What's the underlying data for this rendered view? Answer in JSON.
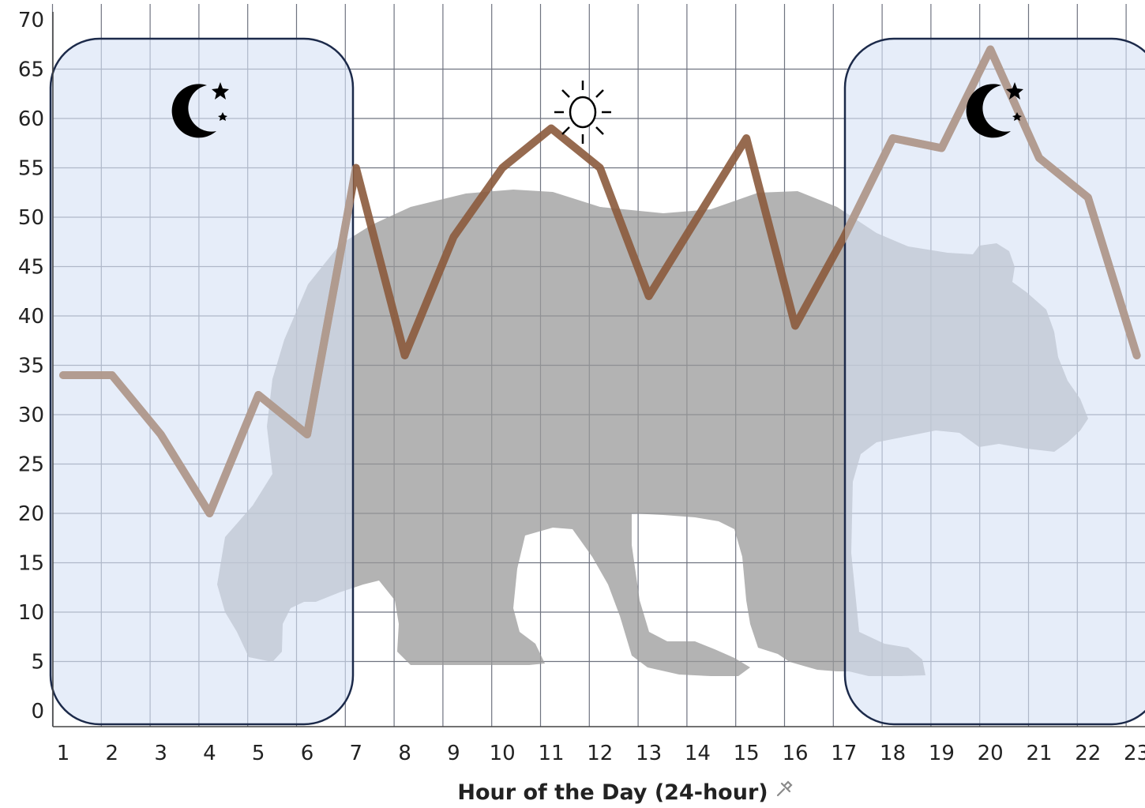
{
  "chart_data": {
    "type": "line",
    "title": "",
    "xlabel": "Hour of the Day (24-hour)",
    "ylabel": "",
    "x": [
      1,
      2,
      3,
      4,
      5,
      6,
      7,
      8,
      9,
      10,
      11,
      12,
      13,
      14,
      15,
      16,
      17,
      18,
      19,
      20,
      21,
      22,
      23
    ],
    "series": [
      {
        "values": [
          34,
          34,
          28,
          20,
          32,
          28,
          55,
          36,
          48,
          55,
          59,
          55,
          42,
          50,
          58,
          39,
          48,
          58,
          57,
          67,
          56,
          52,
          36
        ]
      }
    ],
    "xlim": [
      1,
      23
    ],
    "ylim": [
      0,
      70
    ],
    "yticks": [
      0,
      5,
      10,
      15,
      20,
      25,
      30,
      35,
      40,
      45,
      50,
      55,
      60,
      65,
      70
    ],
    "grid": true,
    "night_periods": [
      [
        1,
        7
      ],
      [
        18,
        23
      ]
    ],
    "colors": {
      "line": "#8b5a3c",
      "night_fill": "#dde6f6",
      "night_border": "#1c2a4a",
      "bear": "#9a9a9a",
      "grid": "#6f7380"
    },
    "icons": {
      "night": "moon-stars-icon",
      "day": "sun-icon",
      "axis_label": "pin-icon"
    }
  }
}
